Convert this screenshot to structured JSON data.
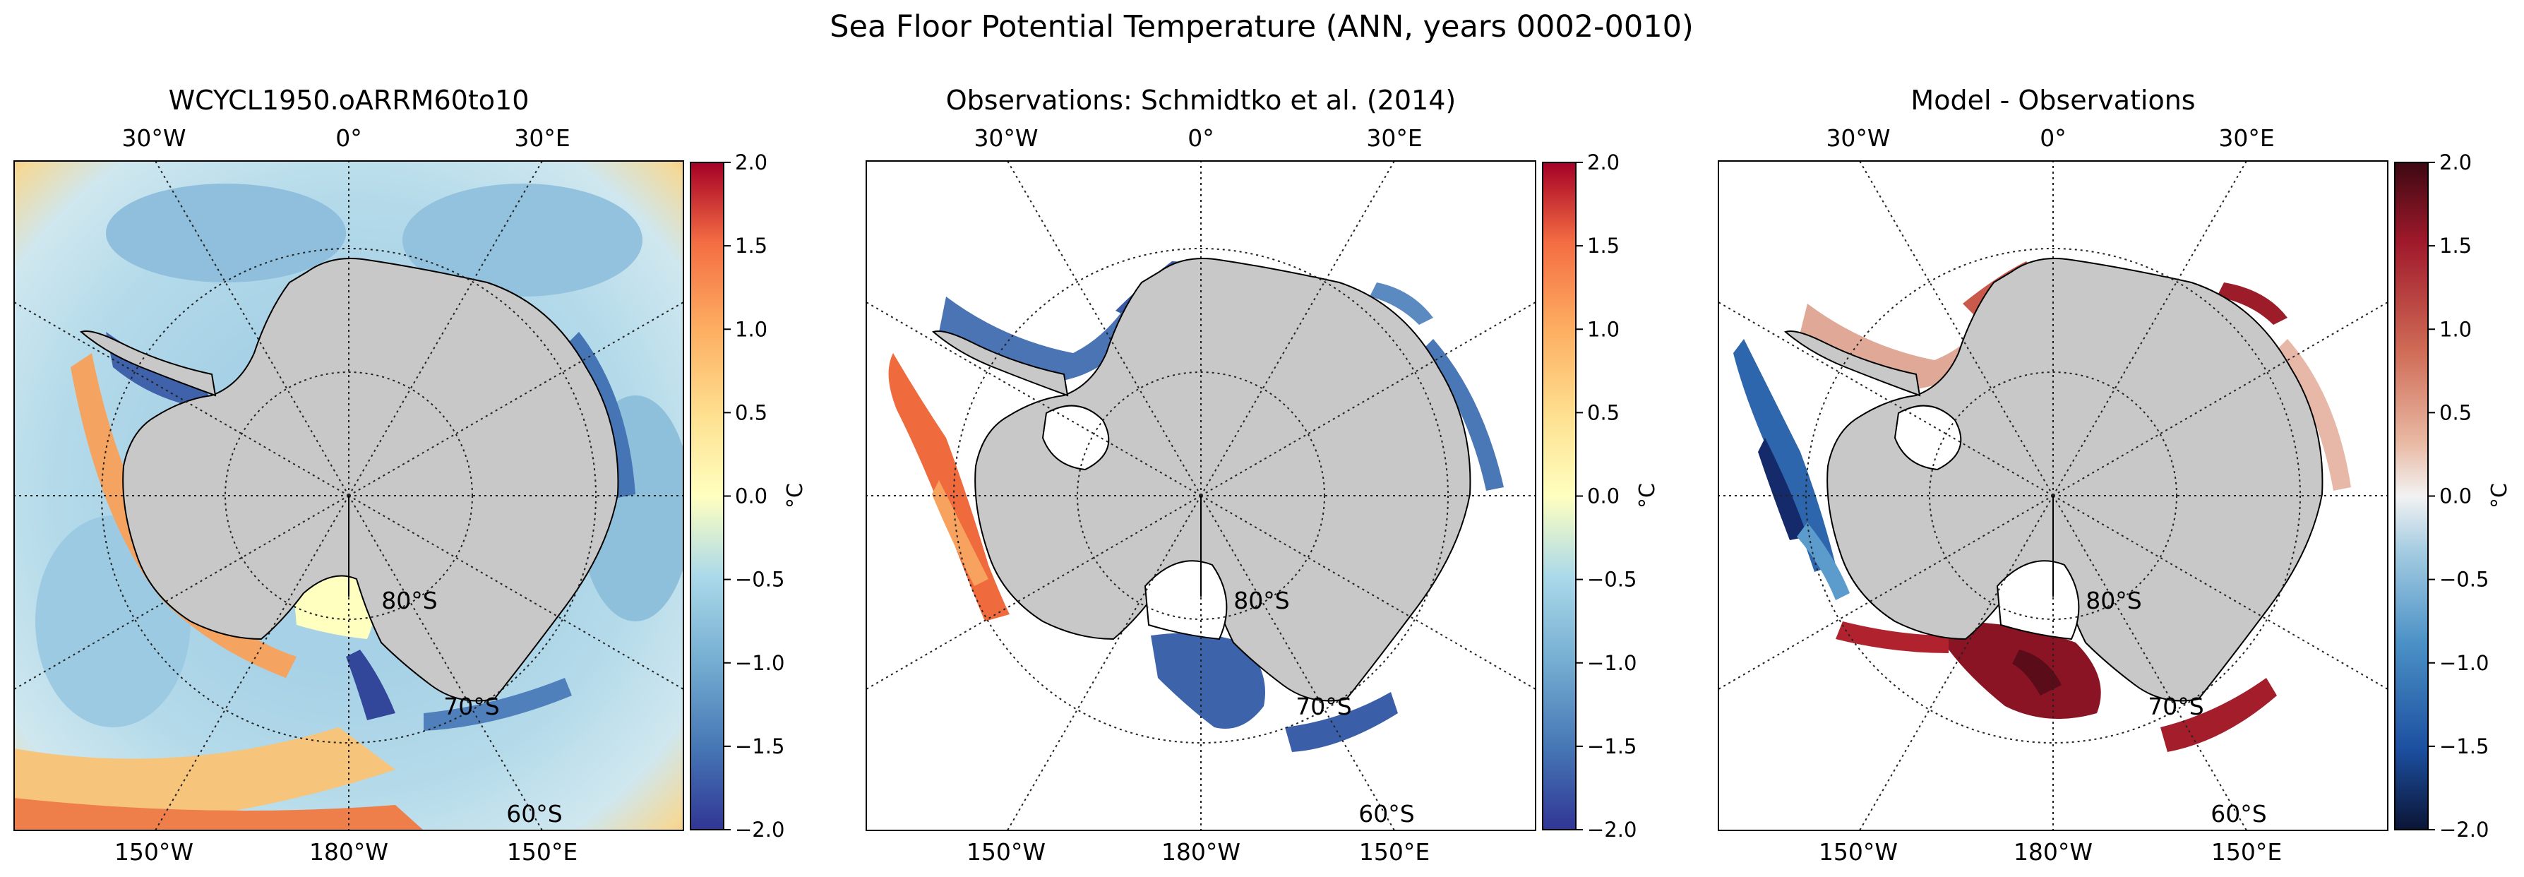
{
  "figure": {
    "suptitle": "Sea Floor Potential Temperature (ANN, years 0002-0010)"
  },
  "chart_data": [
    {
      "type": "heatmap",
      "title": "WCYCL1950.oARRM60to10",
      "projection": "south polar stereographic",
      "colormap": "RdYlBu_r",
      "colorbar": {
        "label": "°C",
        "range": [
          -2.0,
          2.0
        ],
        "ticks": [
          "2.0",
          "1.5",
          "1.0",
          "0.5",
          "0.0",
          "−0.5",
          "−1.0",
          "−1.5",
          "−2.0"
        ]
      },
      "lon_labels_top": [
        "30°W",
        "0°",
        "30°E"
      ],
      "lon_labels_bottom": [
        "150°W",
        "180°W",
        "150°E"
      ],
      "lat_labels": [
        "80°S",
        "70°S",
        "60°S"
      ]
    },
    {
      "type": "heatmap",
      "title": "Observations: Schmidtko et al. (2014)",
      "projection": "south polar stereographic",
      "colormap": "RdYlBu_r",
      "colorbar": {
        "label": "°C",
        "range": [
          -2.0,
          2.0
        ],
        "ticks": [
          "2.0",
          "1.5",
          "1.0",
          "0.5",
          "0.0",
          "−0.5",
          "−1.0",
          "−1.5",
          "−2.0"
        ]
      },
      "lon_labels_top": [
        "30°W",
        "0°",
        "30°E"
      ],
      "lon_labels_bottom": [
        "150°W",
        "180°W",
        "150°E"
      ],
      "lat_labels": [
        "80°S",
        "70°S",
        "60°S"
      ]
    },
    {
      "type": "heatmap",
      "title": "Model - Observations",
      "projection": "south polar stereographic",
      "colormap": "RdBu_r",
      "colorbar": {
        "label": "°C",
        "range": [
          -2.0,
          2.0
        ],
        "ticks": [
          "2.0",
          "1.5",
          "1.0",
          "0.5",
          "0.0",
          "−0.5",
          "−1.0",
          "−1.5",
          "−2.0"
        ]
      },
      "lon_labels_top": [
        "30°W",
        "0°",
        "30°E"
      ],
      "lon_labels_bottom": [
        "150°W",
        "180°W",
        "150°E"
      ],
      "lat_labels": [
        "80°S",
        "70°S",
        "60°S"
      ]
    }
  ]
}
